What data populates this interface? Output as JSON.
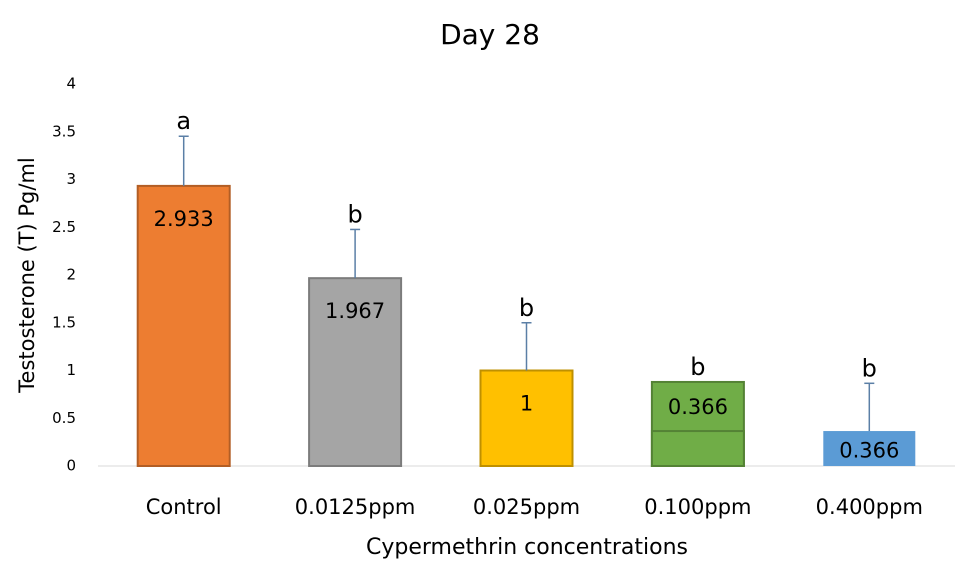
{
  "chart_data": {
    "type": "bar",
    "title": "Day 28",
    "x_label": "Cypermethrin concentrations",
    "y_label": "Testosterone (T) Pg/ml",
    "categories": [
      "Control",
      "0.0125ppm",
      "0.025ppm",
      "0.100ppm",
      "0.400ppm"
    ],
    "values": [
      2.933,
      1.967,
      1,
      0.366,
      0.366
    ],
    "outer_values": [
      null,
      null,
      null,
      0.88,
      null
    ],
    "errors": [
      0.52,
      0.51,
      0.5,
      null,
      0.5
    ],
    "letters": [
      "a",
      "b",
      "b",
      "b",
      "b"
    ],
    "colors": [
      "#ed7d31",
      "#a5a5a5",
      "#ffc000",
      "#70ad47",
      "#5b9bd5"
    ],
    "ylim": [
      0,
      4
    ],
    "yticks": [
      0,
      0.5,
      1,
      1.5,
      2,
      2.5,
      3,
      3.5,
      4
    ],
    "grid": false
  }
}
